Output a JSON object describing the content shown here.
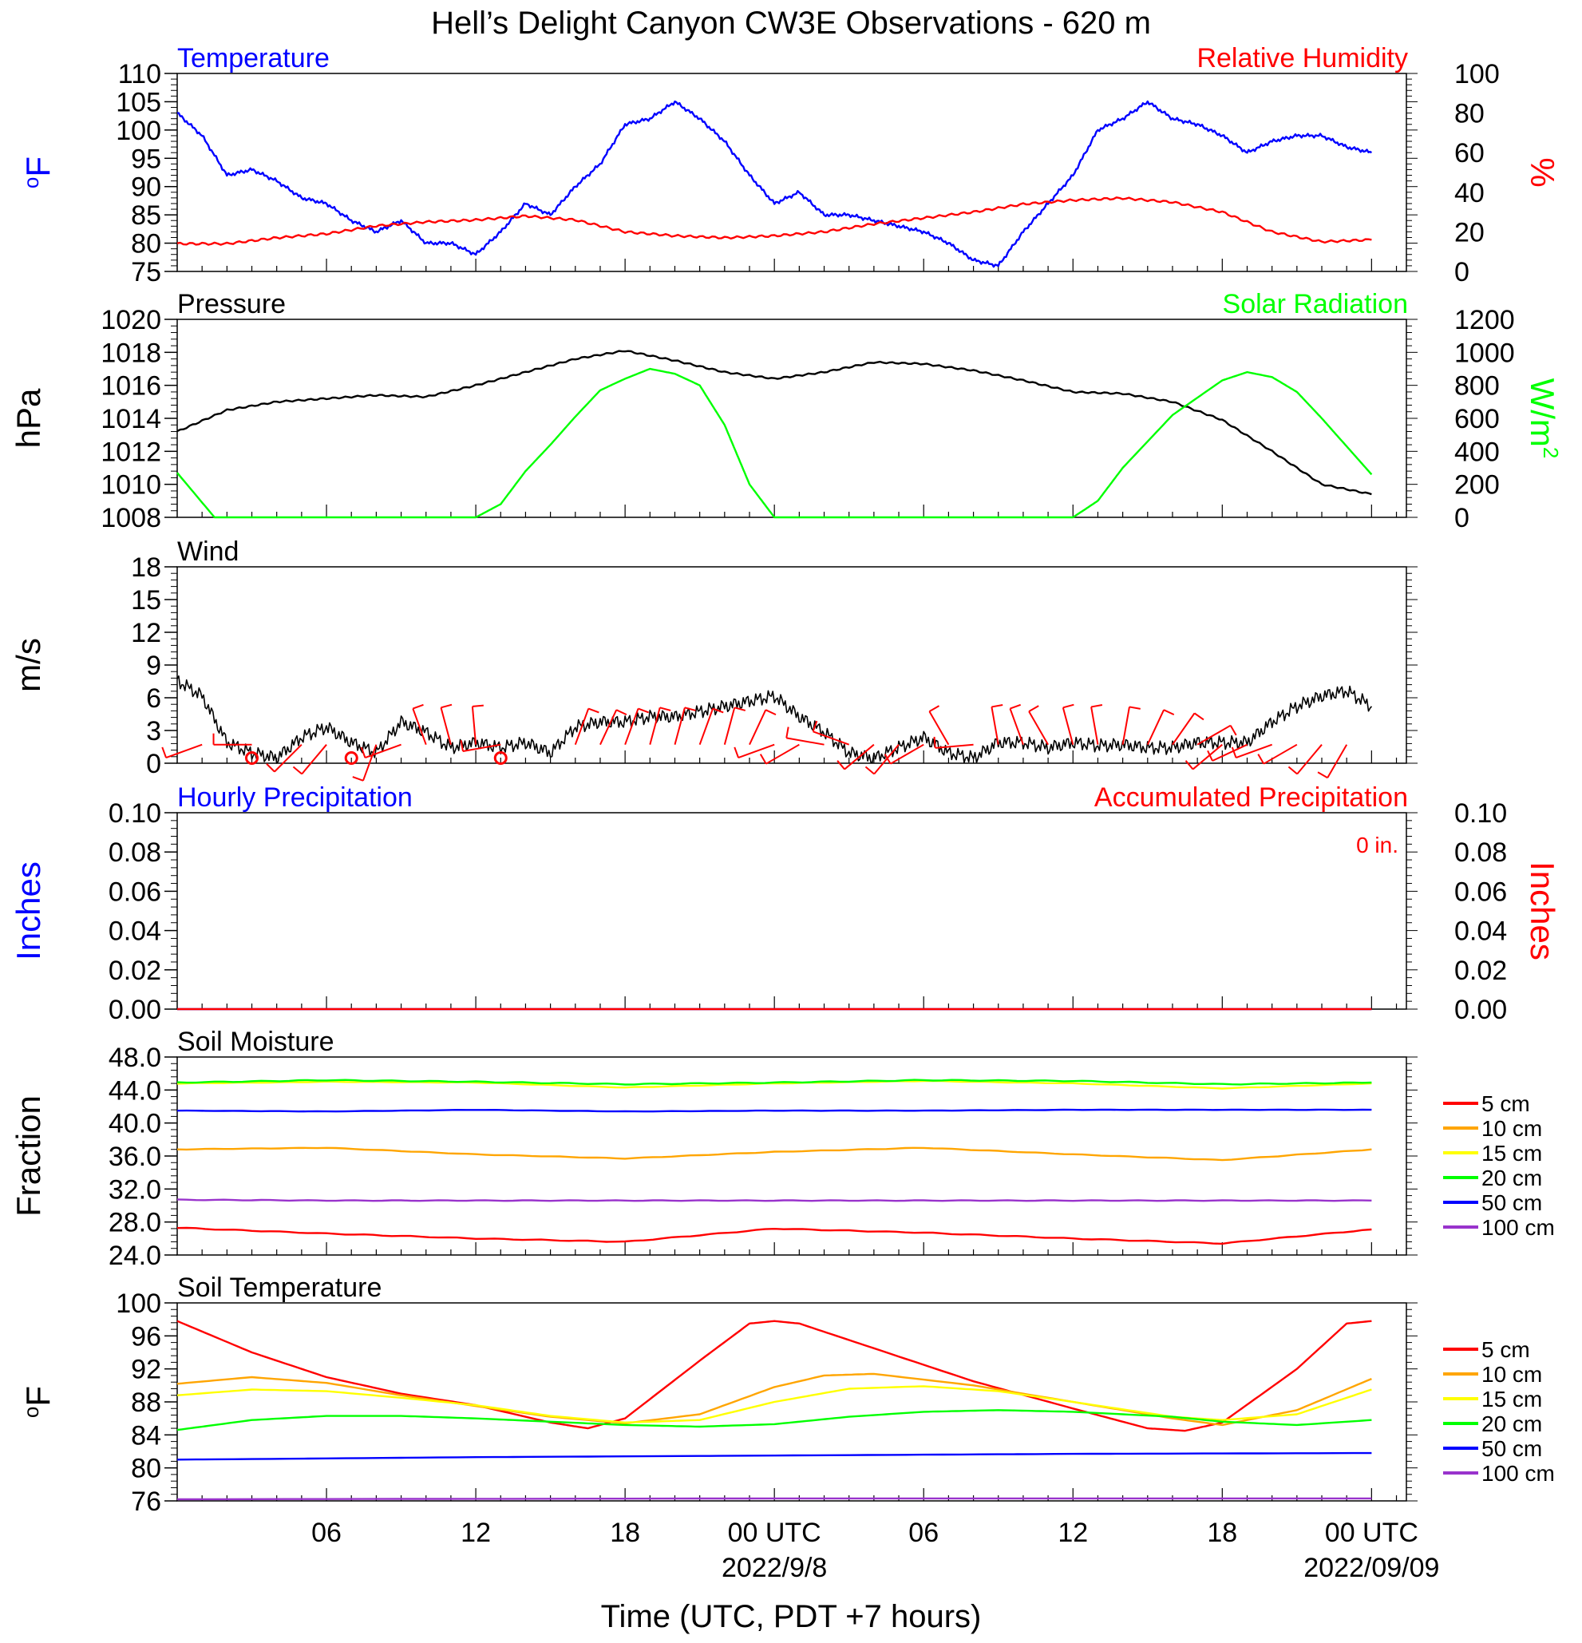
{
  "page": {
    "title": "Hell’s Delight Canyon CW3E Observations - 620 m",
    "xlabel": "Time (UTC, PDT +7 hours)"
  },
  "colors": {
    "temperature": "#0000ff",
    "humidity": "#ff0000",
    "pressure": "#000000",
    "solar": "#00ff00",
    "wind": "#000000",
    "barbs": "#ff0000",
    "hourly_precip": "#0000ff",
    "accum_precip": "#ff0000",
    "depth_colors": [
      "#ff0000",
      "#ffa500",
      "#ffff00",
      "#00ff00",
      "#0000ff",
      "#9933cc"
    ]
  },
  "x_ticks": [
    {
      "h": 6,
      "label": "06",
      "date": ""
    },
    {
      "h": 12,
      "label": "12",
      "date": ""
    },
    {
      "h": 18,
      "label": "18",
      "date": ""
    },
    {
      "h": 24,
      "label": "00 UTC",
      "date": "2022/9/8"
    },
    {
      "h": 30,
      "label": "06",
      "date": ""
    },
    {
      "h": 36,
      "label": "12",
      "date": ""
    },
    {
      "h": 42,
      "label": "18",
      "date": ""
    },
    {
      "h": 48,
      "label": "00 UTC",
      "date": "2022/09/09"
    }
  ],
  "chart_data": [
    {
      "type": "line",
      "panel": "temperature-humidity",
      "left_title": "Temperature",
      "right_title": "Relative Humidity",
      "ylabel": "oF",
      "y2label": "%",
      "ylim": [
        75,
        110
      ],
      "yticks": [
        "75",
        "80",
        "85",
        "90",
        "95",
        "100",
        "105",
        "110"
      ],
      "y2lim": [
        0,
        100
      ],
      "y2ticks": [
        "0",
        "20",
        "40",
        "60",
        "80",
        "100"
      ],
      "series": [
        {
          "name": "Temperature",
          "axis": "left",
          "x": [
            0,
            1,
            2,
            3,
            4,
            5,
            6,
            7,
            8,
            9,
            10,
            11,
            12,
            13,
            14,
            15,
            16,
            17,
            18,
            19,
            20,
            21,
            22,
            23,
            24,
            25,
            26,
            27,
            28,
            29,
            30,
            31,
            32,
            33,
            34,
            35,
            36,
            37,
            38,
            39,
            40,
            41,
            42,
            43,
            44,
            45,
            46,
            47,
            48
          ],
          "y": [
            103,
            99,
            92,
            93,
            91,
            88,
            87,
            84,
            82,
            84,
            80,
            80,
            78,
            82,
            87,
            85,
            90,
            94,
            101,
            102,
            105,
            102,
            98,
            92,
            87,
            89,
            85,
            85,
            84,
            83,
            82,
            80,
            77,
            76,
            82,
            87,
            92,
            100,
            102,
            105,
            102,
            101,
            99,
            96,
            98,
            99,
            99,
            97,
            96
          ]
        },
        {
          "name": "Relative Humidity",
          "axis": "right",
          "x": [
            0,
            2,
            4,
            6,
            8,
            10,
            12,
            14,
            16,
            18,
            20,
            22,
            24,
            26,
            28,
            30,
            32,
            34,
            36,
            38,
            40,
            42,
            44,
            46,
            48
          ],
          "y": [
            14,
            14,
            17,
            19,
            23,
            25,
            26,
            28,
            26,
            20,
            18,
            17,
            18,
            20,
            24,
            27,
            30,
            34,
            36,
            37,
            35,
            30,
            20,
            15,
            16
          ]
        }
      ]
    },
    {
      "type": "line",
      "panel": "pressure-solar",
      "left_title": "Pressure",
      "right_title": "Solar Radiation",
      "ylabel": "hPa",
      "y2label": "W/m2",
      "ylim": [
        1008,
        1020
      ],
      "yticks": [
        "1008",
        "1010",
        "1012",
        "1014",
        "1016",
        "1018",
        "1020"
      ],
      "y2lim": [
        0,
        1200
      ],
      "y2ticks": [
        "0",
        "200",
        "400",
        "600",
        "800",
        "1000",
        "1200"
      ],
      "series": [
        {
          "name": "Pressure",
          "axis": "left",
          "x": [
            0,
            2,
            4,
            6,
            8,
            10,
            12,
            14,
            16,
            18,
            20,
            22,
            24,
            26,
            28,
            30,
            32,
            34,
            36,
            38,
            40,
            42,
            44,
            46,
            48
          ],
          "y": [
            1013.2,
            1014.5,
            1015,
            1015.2,
            1015.4,
            1015.3,
            1016,
            1016.8,
            1017.6,
            1018.1,
            1017.5,
            1016.8,
            1016.4,
            1016.8,
            1017.4,
            1017.3,
            1016.9,
            1016.3,
            1015.6,
            1015.5,
            1015,
            1013.9,
            1012,
            1010,
            1009.4
          ]
        },
        {
          "name": "Solar Radiation",
          "axis": "right",
          "x": [
            0,
            1.5,
            2,
            12,
            13,
            14,
            15,
            16,
            17,
            18,
            19,
            20,
            21,
            22,
            23,
            24,
            25,
            26,
            36,
            37,
            38,
            40,
            42,
            43,
            44,
            45,
            46,
            47,
            48
          ],
          "y": [
            270,
            0,
            0,
            0,
            80,
            280,
            440,
            610,
            770,
            840,
            900,
            870,
            800,
            560,
            200,
            0,
            0,
            0,
            0,
            100,
            300,
            620,
            830,
            880,
            850,
            760,
            600,
            430,
            260
          ]
        }
      ]
    },
    {
      "type": "line",
      "panel": "wind",
      "left_title": "Wind",
      "ylabel": "m/s",
      "ylim": [
        0,
        19
      ],
      "yticks": [
        "0",
        "3",
        "6",
        "9",
        "12",
        "15",
        "18"
      ],
      "series": [
        {
          "name": "Wind",
          "axis": "left",
          "x": [
            0,
            1,
            2,
            3,
            4,
            5,
            6,
            7,
            8,
            9,
            10,
            11,
            12,
            13,
            14,
            15,
            16,
            17,
            18,
            19,
            20,
            21,
            22,
            23,
            24,
            25,
            26,
            27,
            28,
            29,
            30,
            31,
            32,
            33,
            34,
            35,
            36,
            37,
            38,
            39,
            40,
            41,
            42,
            43,
            44,
            45,
            46,
            47,
            48
          ],
          "y": [
            8,
            6.5,
            2,
            1,
            0.5,
            2.5,
            3.5,
            2,
            1,
            4,
            3,
            1.5,
            2,
            1.5,
            2,
            1,
            3.5,
            4,
            4,
            4.5,
            4.5,
            5,
            5.5,
            6,
            6.5,
            4.5,
            3,
            1,
            0.5,
            1.5,
            2.5,
            1,
            0.5,
            2,
            2,
            1.5,
            2,
            1.7,
            1.8,
            1.5,
            1.5,
            2,
            2,
            2,
            4,
            5.5,
            6.5,
            7,
            5.5
          ]
        }
      ]
    },
    {
      "type": "line",
      "panel": "precipitation",
      "left_title": "Hourly Precipitation",
      "right_title": "Accumulated Precipitation",
      "annotation": "0 in.",
      "ylabel": "Inches",
      "y2label": "Inches",
      "ylim": [
        0,
        0.1
      ],
      "yticks": [
        "0.00",
        "0.02",
        "0.04",
        "0.06",
        "0.08",
        "0.10"
      ],
      "y2lim": [
        0,
        0.1
      ],
      "y2ticks": [
        "0.00",
        "0.02",
        "0.04",
        "0.06",
        "0.08",
        "0.10"
      ],
      "series": [
        {
          "name": "Hourly Precipitation",
          "axis": "left",
          "x": [
            0,
            48
          ],
          "y": [
            0,
            0
          ]
        },
        {
          "name": "Accumulated Precipitation",
          "axis": "right",
          "x": [
            0,
            48
          ],
          "y": [
            0,
            0
          ]
        }
      ]
    },
    {
      "type": "line",
      "panel": "soil-moisture",
      "left_title": "Soil Moisture",
      "ylabel": "Fraction",
      "ylim": [
        24,
        48
      ],
      "yticks": [
        "24.0",
        "28.0",
        "32.0",
        "36.0",
        "40.0",
        "44.0",
        "48.0"
      ],
      "legend": [
        "5 cm",
        "10 cm",
        "15 cm",
        "20 cm",
        "50 cm",
        "100 cm"
      ],
      "series": [
        {
          "name": "5 cm",
          "axis": "left",
          "x": [
            0,
            6,
            12,
            18,
            24,
            30,
            36,
            42,
            48
          ],
          "y": [
            27.3,
            26.6,
            26.0,
            25.6,
            27.2,
            26.7,
            26.0,
            25.4,
            27.1
          ]
        },
        {
          "name": "10 cm",
          "axis": "left",
          "x": [
            0,
            6,
            12,
            18,
            24,
            30,
            36,
            42,
            48
          ],
          "y": [
            36.8,
            37.0,
            36.2,
            35.7,
            36.5,
            37.0,
            36.2,
            35.5,
            36.8
          ]
        },
        {
          "name": "15 cm",
          "axis": "left",
          "x": [
            0,
            6,
            12,
            18,
            24,
            30,
            36,
            42,
            48
          ],
          "y": [
            44.8,
            45.0,
            44.9,
            44.3,
            44.8,
            45.1,
            44.8,
            44.2,
            44.8
          ]
        },
        {
          "name": "20 cm",
          "axis": "left",
          "x": [
            0,
            6,
            12,
            18,
            24,
            30,
            36,
            42,
            48
          ],
          "y": [
            44.9,
            45.2,
            45.0,
            44.7,
            44.9,
            45.2,
            45.1,
            44.7,
            44.9
          ]
        },
        {
          "name": "50 cm",
          "axis": "left",
          "x": [
            0,
            6,
            12,
            18,
            24,
            30,
            36,
            42,
            48
          ],
          "y": [
            41.5,
            41.4,
            41.6,
            41.4,
            41.5,
            41.5,
            41.6,
            41.6,
            41.6
          ]
        },
        {
          "name": "100 cm",
          "axis": "left",
          "x": [
            0,
            6,
            12,
            18,
            24,
            30,
            36,
            42,
            48
          ],
          "y": [
            30.7,
            30.6,
            30.6,
            30.6,
            30.6,
            30.6,
            30.6,
            30.6,
            30.6
          ]
        }
      ]
    },
    {
      "type": "line",
      "panel": "soil-temperature",
      "left_title": "Soil Temperature",
      "ylabel": "oF",
      "ylim": [
        76,
        100
      ],
      "yticks": [
        "76",
        "80",
        "84",
        "88",
        "92",
        "96",
        "100"
      ],
      "legend": [
        "5 cm",
        "10 cm",
        "15 cm",
        "20 cm",
        "50 cm",
        "100 cm"
      ],
      "series": [
        {
          "name": "5 cm",
          "axis": "left",
          "x": [
            0,
            3,
            6,
            9,
            12,
            15,
            16.5,
            18,
            21,
            23,
            24,
            25,
            28,
            32,
            36,
            39,
            40.5,
            42,
            45,
            47,
            48
          ],
          "y": [
            97.8,
            94,
            91,
            89,
            87.6,
            85.5,
            84.8,
            86,
            93,
            97.5,
            97.8,
            97.5,
            94.5,
            90.5,
            87.2,
            84.8,
            84.5,
            85.5,
            92,
            97.5,
            97.8
          ]
        },
        {
          "name": "10 cm",
          "axis": "left",
          "x": [
            0,
            3,
            6,
            9,
            12,
            15,
            18,
            21,
            24,
            26,
            28,
            32,
            36,
            40,
            42,
            45,
            48
          ],
          "y": [
            90.2,
            91,
            90.3,
            88.8,
            87.5,
            86.2,
            85.4,
            86.5,
            89.8,
            91.2,
            91.4,
            90,
            88,
            86,
            85.2,
            87,
            90.8
          ]
        },
        {
          "name": "15 cm",
          "axis": "left",
          "x": [
            0,
            3,
            6,
            9,
            12,
            15,
            18,
            21,
            24,
            27,
            30,
            33,
            36,
            40,
            42,
            45,
            48
          ],
          "y": [
            88.8,
            89.5,
            89.3,
            88.5,
            87.6,
            86.3,
            85.5,
            85.8,
            88,
            89.6,
            89.9,
            89.3,
            88,
            86.2,
            85.8,
            86.5,
            89.5
          ]
        },
        {
          "name": "20 cm",
          "axis": "left",
          "x": [
            0,
            3,
            6,
            9,
            12,
            15,
            18,
            21,
            24,
            27,
            30,
            33,
            36,
            40,
            42,
            45,
            48
          ],
          "y": [
            84.6,
            85.8,
            86.3,
            86.3,
            86,
            85.6,
            85.2,
            85,
            85.3,
            86.2,
            86.8,
            87,
            86.8,
            86.2,
            85.6,
            85.2,
            85.8
          ]
        },
        {
          "name": "50 cm",
          "axis": "left",
          "x": [
            0,
            12,
            24,
            36,
            48
          ],
          "y": [
            81,
            81.3,
            81.5,
            81.7,
            81.8
          ]
        },
        {
          "name": "100 cm",
          "axis": "left",
          "x": [
            0,
            24,
            48
          ],
          "y": [
            76.2,
            76.3,
            76.3
          ]
        }
      ]
    }
  ],
  "wind_barbs": [
    {
      "h": 1,
      "dir": 250
    },
    {
      "h": 3,
      "dir": 270
    },
    {
      "h": 5,
      "dir": 225
    },
    {
      "h": 6,
      "dir": 220
    },
    {
      "h": 8,
      "dir": 200
    },
    {
      "h": 9,
      "dir": 250
    },
    {
      "h": 10,
      "dir": 340
    },
    {
      "h": 11,
      "dir": 345
    },
    {
      "h": 12,
      "dir": 355
    },
    {
      "h": 13,
      "dir": 260
    },
    {
      "h": 16,
      "dir": 20
    },
    {
      "h": 17,
      "dir": 25
    },
    {
      "h": 18,
      "dir": 20
    },
    {
      "h": 19,
      "dir": 15
    },
    {
      "h": 20,
      "dir": 15
    },
    {
      "h": 21,
      "dir": 20
    },
    {
      "h": 22,
      "dir": 15
    },
    {
      "h": 23,
      "dir": 25
    },
    {
      "h": 24,
      "dir": 250
    },
    {
      "h": 25,
      "dir": 240
    },
    {
      "h": 26,
      "dir": 280
    },
    {
      "h": 27,
      "dir": 290
    },
    {
      "h": 28,
      "dir": 230
    },
    {
      "h": 29,
      "dir": 220
    },
    {
      "h": 30,
      "dir": 240
    },
    {
      "h": 31,
      "dir": 330
    },
    {
      "h": 32,
      "dir": 265
    },
    {
      "h": 33,
      "dir": 350
    },
    {
      "h": 34,
      "dir": 340
    },
    {
      "h": 35,
      "dir": 330
    },
    {
      "h": 36,
      "dir": 345
    },
    {
      "h": 37,
      "dir": 350
    },
    {
      "h": 38,
      "dir": 10
    },
    {
      "h": 39,
      "dir": 25
    },
    {
      "h": 40,
      "dir": 35
    },
    {
      "h": 41,
      "dir": 60
    },
    {
      "h": 42,
      "dir": 230
    },
    {
      "h": 43,
      "dir": 245
    },
    {
      "h": 44,
      "dir": 250
    },
    {
      "h": 45,
      "dir": 240
    },
    {
      "h": 46,
      "dir": 220
    },
    {
      "h": 47,
      "dir": 210
    }
  ],
  "calm_markers": [
    3,
    7,
    13
  ]
}
